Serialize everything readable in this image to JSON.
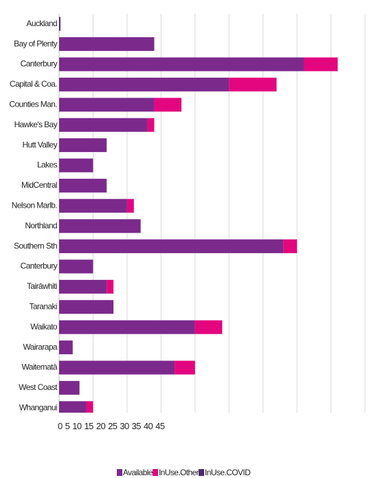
{
  "chart_data": {
    "type": "stacked-barh",
    "categories": [
      "Auckland",
      "Bay of Plenty",
      "Canterbury",
      "Capital & Coa.",
      "Counties Man.",
      "Hawke's Bay",
      "Hutt Valley",
      "Lakes",
      "MidCentral",
      "Nelson Marlb.",
      "Northland",
      "Southern Sth",
      "Canterbury",
      "Tairāwhiti",
      "Taranaki",
      "Waikato",
      "Wairarapa",
      "Waitematā",
      "West Coast",
      "Whanganui"
    ],
    "series": [
      {
        "name": "Available",
        "color": "#7b2a8c",
        "values": [
          0,
          14,
          36,
          25,
          14,
          13,
          7,
          5,
          7,
          10,
          12,
          33,
          5,
          7,
          8,
          20,
          2,
          17,
          3,
          4
        ]
      },
      {
        "name": "InUse.Other",
        "color": "#e3067f",
        "values": [
          0,
          0,
          5,
          7,
          4,
          1,
          0,
          0,
          0,
          1,
          0,
          2,
          0,
          1,
          0,
          4,
          0,
          3,
          0,
          1
        ]
      },
      {
        "name": "InUse.COVID",
        "color": "#4b2a6e",
        "values": [
          0.2,
          0,
          0,
          0,
          0,
          0,
          0,
          0,
          0,
          0,
          0,
          0,
          0,
          0,
          0,
          0,
          0,
          0,
          0,
          0
        ]
      }
    ],
    "xlim": [
      0,
      45
    ],
    "xticks": [
      0,
      5,
      10,
      15,
      20,
      25,
      30,
      35,
      40,
      45
    ],
    "grid": true
  }
}
